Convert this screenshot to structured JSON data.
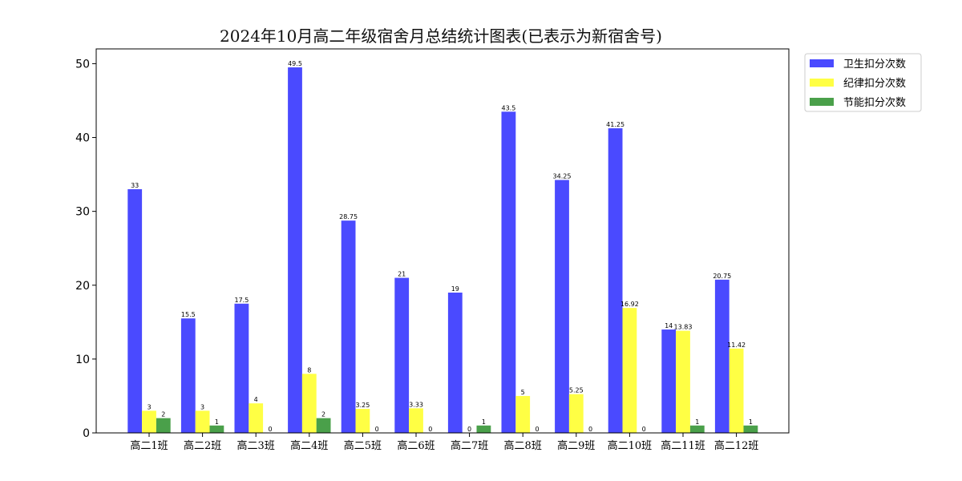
{
  "chart_data": {
    "type": "bar",
    "title": "2024年10月高二年级宿舍月总结统计图表(已表示为新宿舍号)",
    "xlabel": "",
    "ylabel": "",
    "ylim": [
      0,
      52
    ],
    "yticks": [
      0,
      10,
      20,
      30,
      40,
      50
    ],
    "grid": false,
    "legend_position": "outside-top-right",
    "categories": [
      "高二1班",
      "高二2班",
      "高二3班",
      "高二4班",
      "高二5班",
      "高二6班",
      "高二7班",
      "高二8班",
      "高二9班",
      "高二10班",
      "高二11班",
      "高二12班"
    ],
    "series": [
      {
        "name": "卫生扣分次数",
        "color": "#4a4aff",
        "values": [
          33,
          15.5,
          17.5,
          49.5,
          28.75,
          21,
          19,
          43.5,
          34.25,
          41.25,
          14,
          20.75
        ],
        "labels": [
          "33",
          "15.5",
          "17.5",
          "49.5",
          "28.75",
          "21",
          "19",
          "43.5",
          "34.25",
          "41.25",
          "14",
          "20.75"
        ]
      },
      {
        "name": "纪律扣分次数",
        "color": "#ffff44",
        "values": [
          3,
          3,
          4,
          8,
          3.25,
          3.33,
          0,
          5,
          5.25,
          16.92,
          13.83,
          11.42
        ],
        "labels": [
          "3",
          "3",
          "4",
          "8",
          "3.25",
          "3.33",
          "0",
          "5",
          "5.25",
          "16.92",
          "13.83",
          "11.42"
        ]
      },
      {
        "name": "节能扣分次数",
        "color": "#4aa04a",
        "values": [
          2,
          1,
          0,
          2,
          0,
          0,
          1,
          0,
          0,
          0,
          1,
          1
        ],
        "labels": [
          "2",
          "1",
          "0",
          "2",
          "0",
          "0",
          "1",
          "0",
          "0",
          "0",
          "1",
          "1"
        ]
      }
    ]
  }
}
